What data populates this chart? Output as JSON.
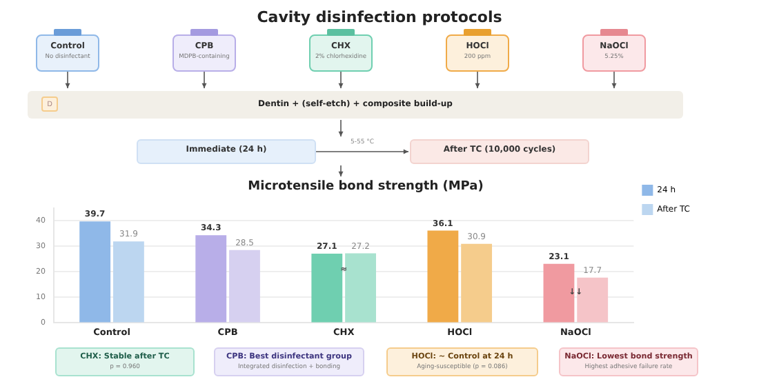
{
  "chart_data": [
    {
      "type": "other",
      "title": "Cavity disinfection protocols",
      "annotations": [
        "Control",
        "No disinfectant",
        "CPB",
        "MDPB-containing",
        "CHX",
        "2% chlorhexidine",
        "HOCl",
        "200 ppm",
        "NaOCl",
        "5.25%",
        "D",
        "Dentin + (self-etch) + composite build-up",
        "Immediate (24 h)",
        "5-55 °C",
        "After TC (10,000 cycles)"
      ]
    },
    {
      "type": "bar",
      "title": "Microtensile bond strength (MPa)",
      "categories": [
        "Control",
        "CPB",
        "CHX",
        "HOCl",
        "NaOCl"
      ],
      "series": [
        {
          "name": "24 h",
          "color": "#8fb8e8",
          "colors": [
            "#8fb8e8",
            "#b8aee8",
            "#6fcfb0",
            "#f0aa48",
            "#f09aa0"
          ],
          "values": [
            39.7,
            34.3,
            27.1,
            36.1,
            23.1
          ]
        },
        {
          "name": "After TC",
          "color": "#bcd6f0",
          "colors": [
            "#bcd6f0",
            "#d6d0f0",
            "#a8e2cf",
            "#f5cc8c",
            "#f5c4c8"
          ],
          "values": [
            31.9,
            28.5,
            27.2,
            30.9,
            17.7
          ]
        }
      ],
      "ylim": [
        0,
        45
      ],
      "yticks": [
        0,
        10,
        20,
        30,
        40
      ],
      "grid": "y",
      "legend": "top right",
      "data_labels": true,
      "annotations": [
        {
          "text": "≈",
          "x": "CHX",
          "y": 21
        },
        {
          "text": "↓↓",
          "x": "NaOCl",
          "y": 12
        },
        "CHX: Stable after TC",
        "p = 0.960",
        "CPB: Best disinfectant group",
        "Integrated disinfection + bonding",
        "HOCl: ~ Control at 24 h",
        "Aging-susceptible (p = 0.086)",
        "NaOCl: Lowest bond strength",
        "Highest adhesive failure rate"
      ]
    }
  ]
}
